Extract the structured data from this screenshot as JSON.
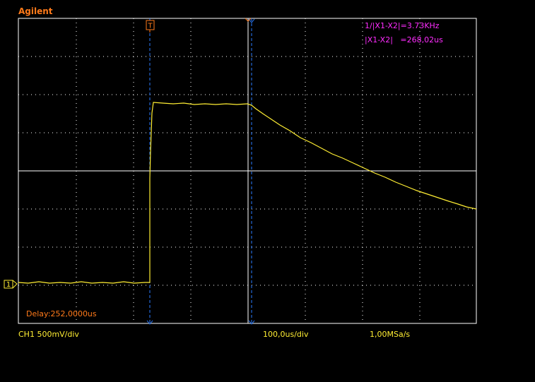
{
  "brand": "Agilent",
  "trigger_marker": "T",
  "channel_marker": "1",
  "measurements": {
    "freq": "1/|X1-X2|=3.73KHz",
    "delta": "|X1-X2|   =268,02us"
  },
  "delay": "Delay:252,0000us",
  "status": {
    "channel_scale": "CH1  500mV/div",
    "time_scale": "100,0us/div",
    "sample_rate": "1,00MSa/s"
  },
  "colors": {
    "trace": "#ffee33",
    "cursor": "#2a7bff",
    "grid": "#ffffff",
    "brand": "#ff7a1a",
    "measure": "#ff2cff"
  }
}
